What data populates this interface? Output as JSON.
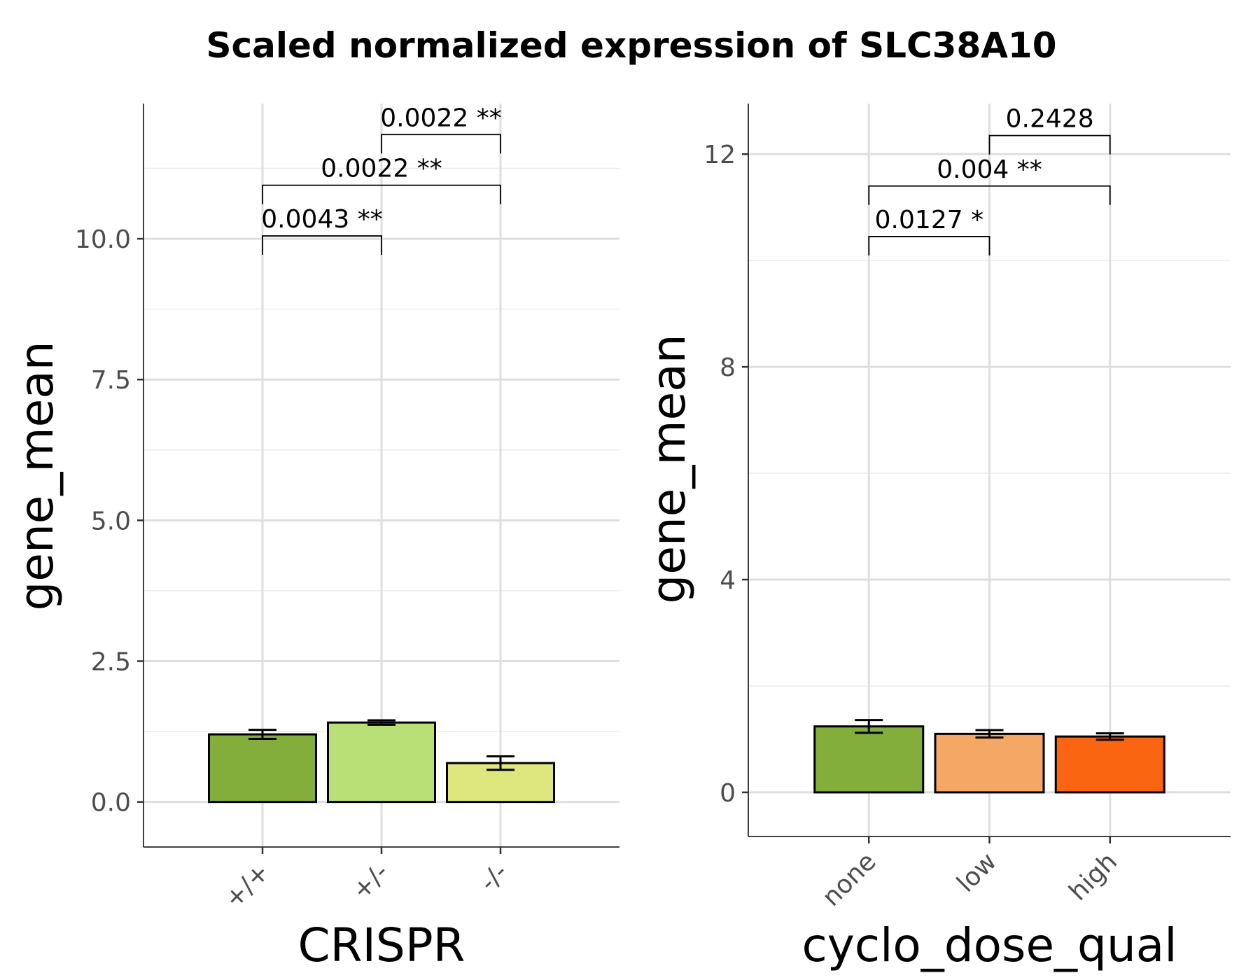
{
  "title": "Scaled normalized expression of SLC38A10",
  "chart_data": [
    {
      "type": "bar",
      "xlabel": "CRISPR",
      "ylabel": "gene_mean",
      "categories": [
        "+/+",
        "+/-",
        "-/-"
      ],
      "values": [
        1.2,
        1.41,
        0.69
      ],
      "error": [
        [
          1.12,
          1.28
        ],
        [
          1.37,
          1.45
        ],
        [
          0.57,
          0.81
        ]
      ],
      "colors": [
        "#83ae3b",
        "#b8e076",
        "#dee77e"
      ],
      "ylim": [
        -0.8,
        12.4
      ],
      "yticks": [
        0.0,
        2.5,
        5.0,
        7.5,
        10.0
      ],
      "ytick_labels": [
        "0.0",
        "2.5",
        "5.0",
        "7.5",
        "10.0"
      ],
      "grid": true,
      "comparisons": [
        {
          "from": 0,
          "to": 1,
          "label": "0.0043 **",
          "y": 10.05
        },
        {
          "from": 0,
          "to": 2,
          "label": "0.0022 **",
          "y": 10.95
        },
        {
          "from": 1,
          "to": 2,
          "label": "0.0022 **",
          "y": 11.85
        }
      ]
    },
    {
      "type": "bar",
      "xlabel": "cyclo_dose_qual",
      "ylabel": "gene_mean",
      "categories": [
        "none",
        "low",
        "high"
      ],
      "values": [
        1.24,
        1.1,
        1.05
      ],
      "error": [
        [
          1.12,
          1.36
        ],
        [
          1.03,
          1.17
        ],
        [
          0.99,
          1.11
        ]
      ],
      "colors": [
        "#83ae3b",
        "#f5a765",
        "#f96511"
      ],
      "ylim": [
        -0.83,
        12.95
      ],
      "yticks": [
        0,
        4,
        8,
        12
      ],
      "ytick_labels": [
        "0",
        "4",
        "8",
        "12"
      ],
      "grid": true,
      "comparisons": [
        {
          "from": 0,
          "to": 1,
          "label": "0.0127 *",
          "y": 10.45
        },
        {
          "from": 0,
          "to": 2,
          "label": "0.004 **",
          "y": 11.4
        },
        {
          "from": 1,
          "to": 2,
          "label": "0.2428",
          "y": 12.35
        }
      ]
    }
  ]
}
